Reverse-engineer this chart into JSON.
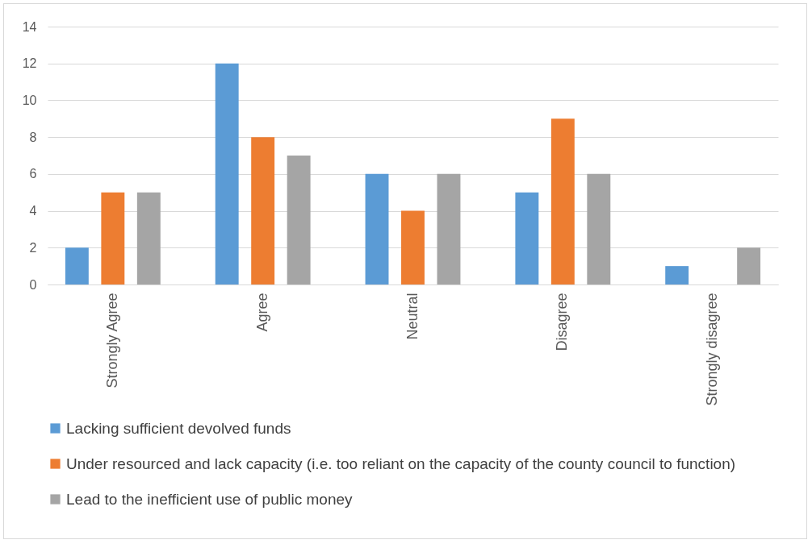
{
  "chart_data": {
    "type": "bar",
    "categories": [
      "Strongly Agree",
      "Agree",
      "Neutral",
      "Disagree",
      "Strongly disagree"
    ],
    "series": [
      {
        "name": "Lacking sufficient devolved funds",
        "color": "#5b9bd5",
        "values": [
          2,
          12,
          6,
          5,
          1
        ]
      },
      {
        "name": "Under resourced and lack capacity (i.e. too reliant on the capacity of the county council to function)",
        "color": "#ed7d31",
        "values": [
          5,
          8,
          4,
          9,
          0
        ]
      },
      {
        "name": "Lead to the inefficient use of public money",
        "color": "#a5a5a5",
        "values": [
          5,
          7,
          6,
          6,
          2
        ]
      }
    ],
    "ylim": [
      0,
      14
    ],
    "yticks": [
      0,
      2,
      4,
      6,
      8,
      10,
      12,
      14
    ],
    "grid": "y",
    "legend": "bottom"
  }
}
